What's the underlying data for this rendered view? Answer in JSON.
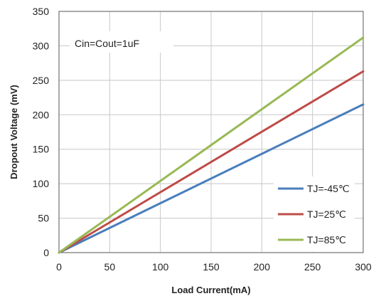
{
  "chart_data": {
    "type": "line",
    "xlabel": "Load Current(mA)",
    "ylabel": "Dropout Voltage (mV)",
    "xlim": [
      0,
      300
    ],
    "ylim": [
      0,
      350
    ],
    "xticks": [
      0,
      50,
      100,
      150,
      200,
      250,
      300
    ],
    "yticks": [
      0,
      50,
      100,
      150,
      200,
      250,
      300,
      350
    ],
    "grid": true,
    "legend_position": "bottom-right",
    "annotation": "Cin=Cout=1uF",
    "series": [
      {
        "name": "TJ=-45℃",
        "color": "#4a7ebb",
        "x": [
          0,
          300
        ],
        "y": [
          0,
          215
        ]
      },
      {
        "name": "TJ=25℃",
        "color": "#be4b48",
        "x": [
          0,
          300
        ],
        "y": [
          0,
          263
        ]
      },
      {
        "name": "TJ=85℃",
        "color": "#98b954",
        "x": [
          0,
          300
        ],
        "y": [
          0,
          312
        ]
      }
    ]
  }
}
